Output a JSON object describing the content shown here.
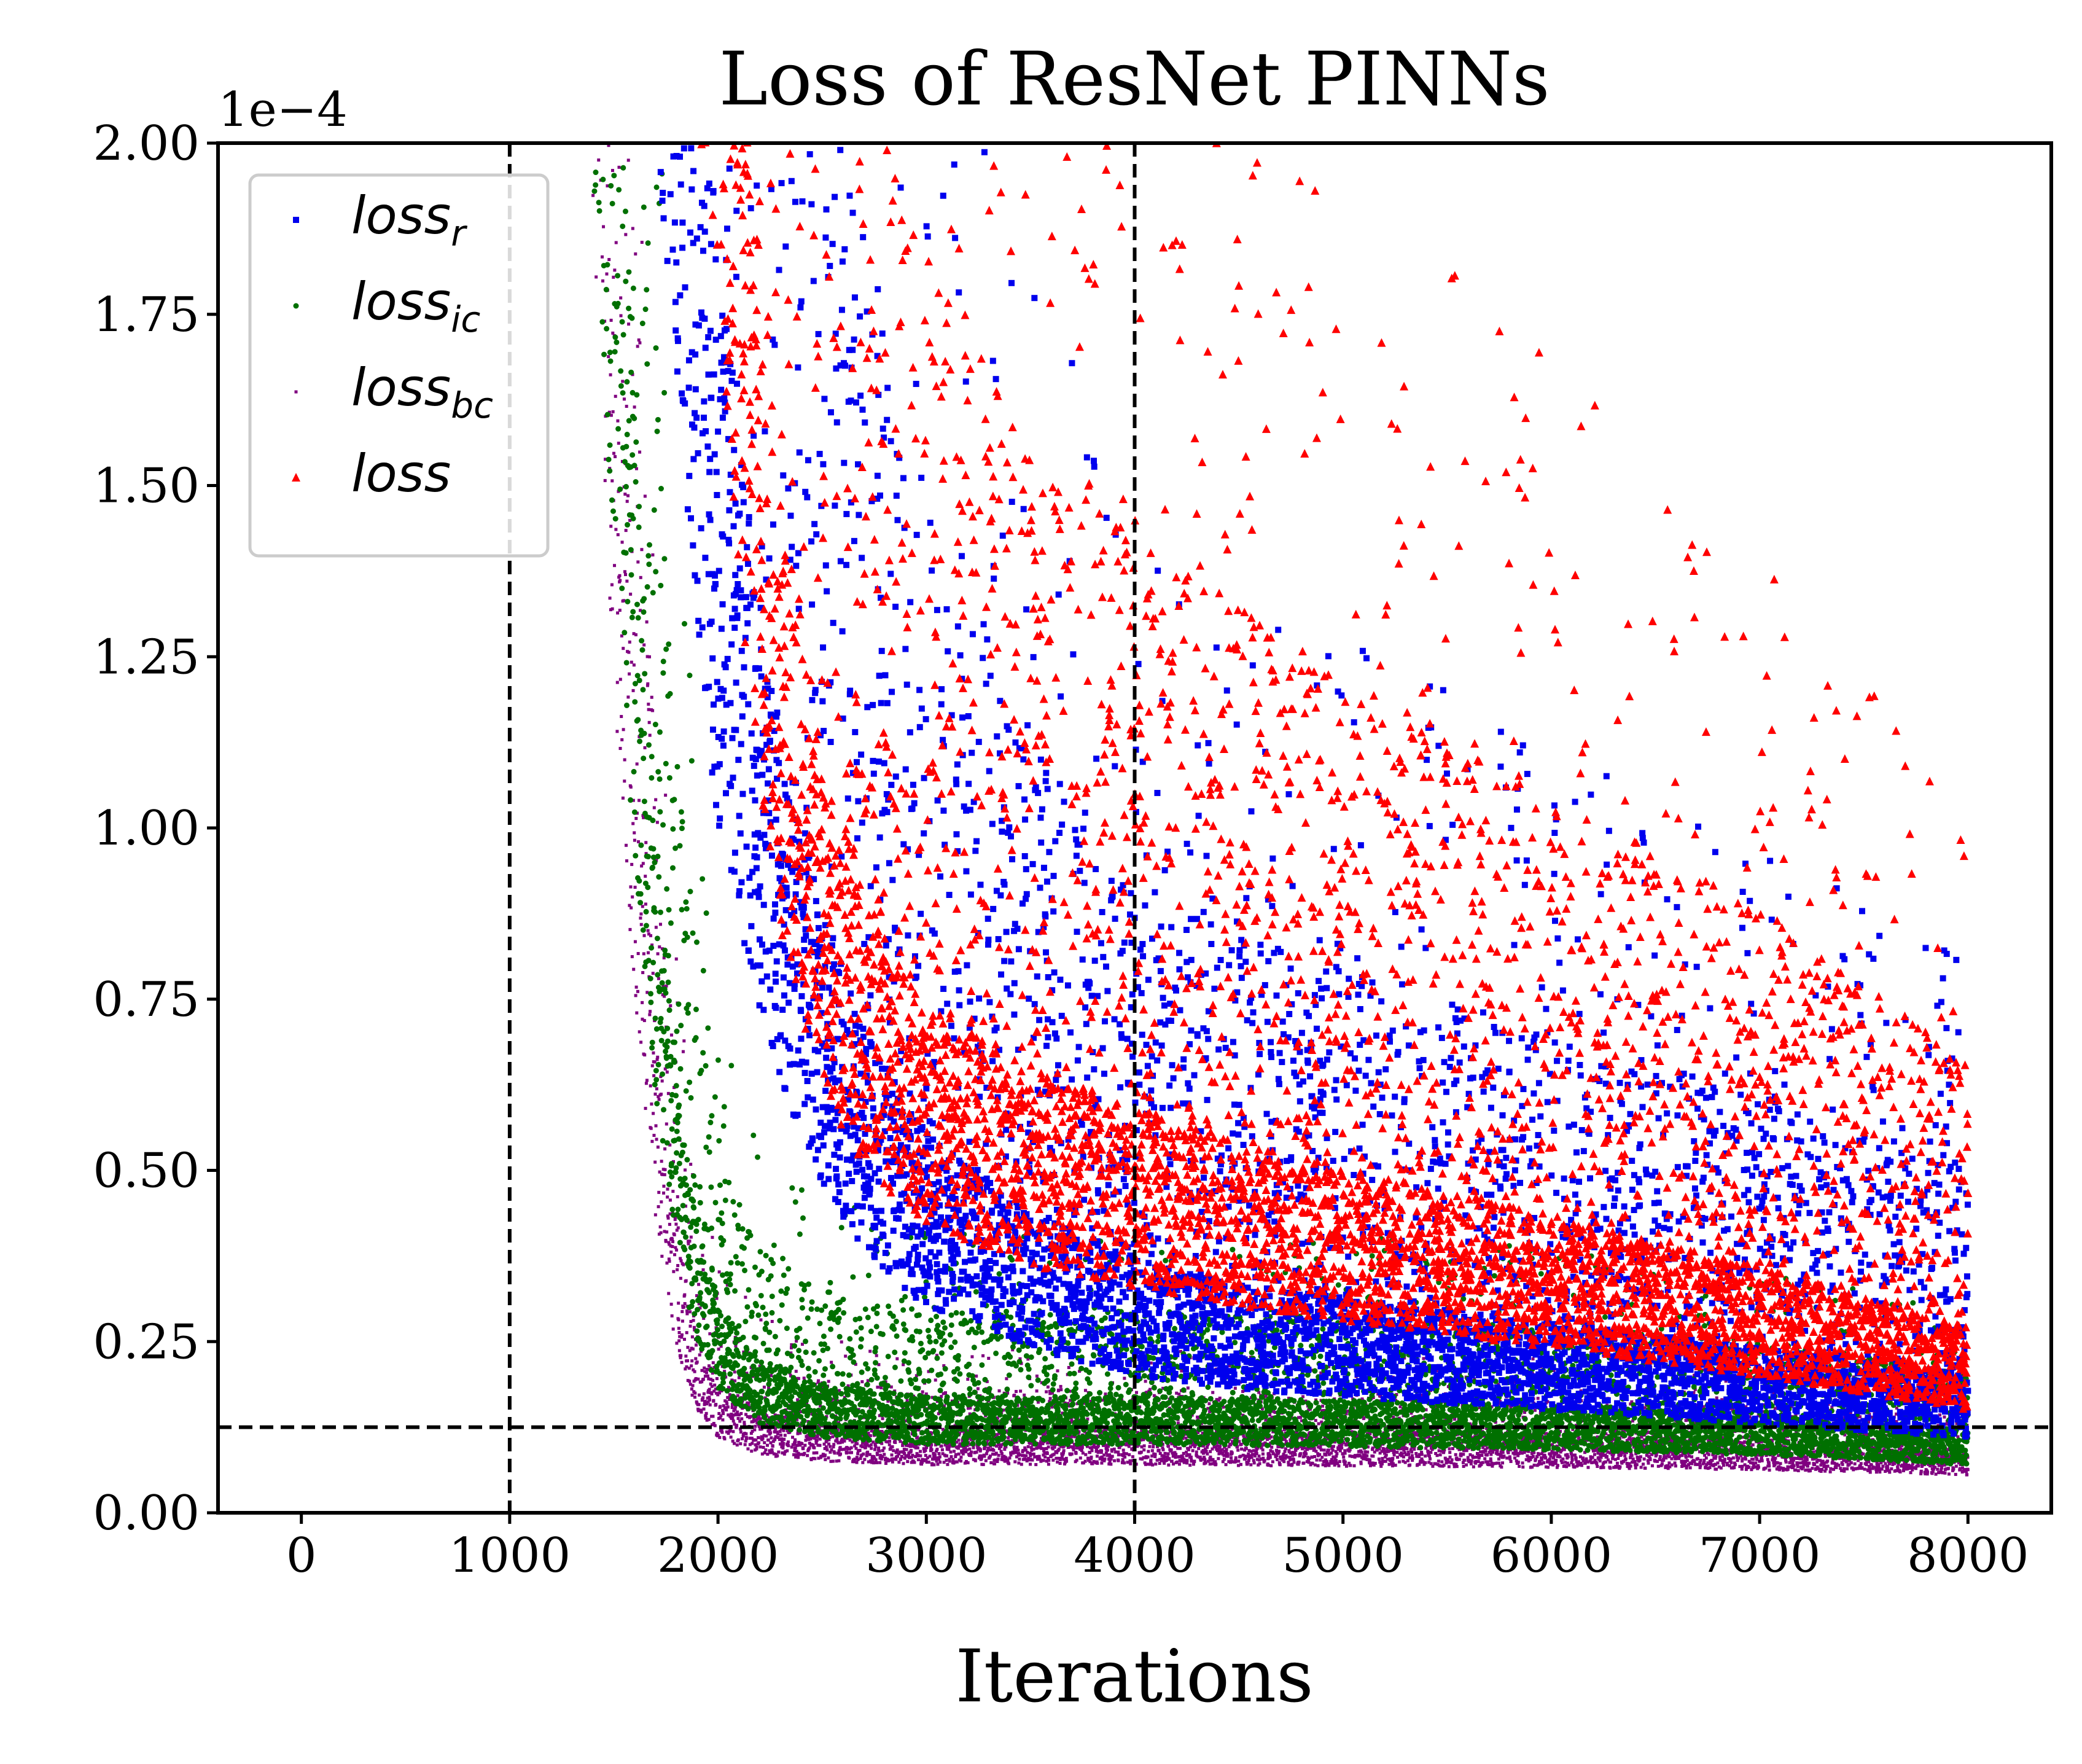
{
  "chart_data": {
    "type": "scatter",
    "title": "Loss of ResNet PINNs",
    "xlabel": "Iterations",
    "ylabel": "",
    "offset_label": "1e−4",
    "xlim": [
      -400,
      8400
    ],
    "ylim": [
      0,
      2.0
    ],
    "y_scale_factor": 0.0001,
    "xticks": [
      0,
      1000,
      2000,
      3000,
      4000,
      5000,
      6000,
      7000,
      8000
    ],
    "xtick_labels": [
      "0",
      "1000",
      "2000",
      "3000",
      "4000",
      "5000",
      "6000",
      "7000",
      "8000"
    ],
    "yticks": [
      0,
      0.25,
      0.5,
      0.75,
      1.0,
      1.25,
      1.5,
      1.75,
      2.0
    ],
    "ytick_labels": [
      "0.00",
      "0.25",
      "0.50",
      "0.75",
      "1.00",
      "1.25",
      "1.50",
      "1.75",
      "2.00"
    ],
    "legend_position": "top-left",
    "reference_lines": [
      {
        "orientation": "vertical",
        "value": 1000,
        "style": "dashed",
        "color": "#000000"
      },
      {
        "orientation": "vertical",
        "value": 4000,
        "style": "dashed",
        "color": "#000000"
      },
      {
        "orientation": "horizontal",
        "value": 0.125,
        "style": "dashed",
        "color": "#000000"
      }
    ],
    "series": [
      {
        "key": "loss_bc",
        "legend_base": "loss",
        "legend_sub": "bc",
        "color": "#800080",
        "marker": "pixel",
        "trend": [
          [
            1400,
            1.9
          ],
          [
            1500,
            1.2
          ],
          [
            1600,
            0.75
          ],
          [
            1700,
            0.42
          ],
          [
            1800,
            0.24
          ],
          [
            1900,
            0.15
          ],
          [
            2000,
            0.11
          ],
          [
            2200,
            0.085
          ],
          [
            2500,
            0.075
          ],
          [
            3000,
            0.07
          ],
          [
            4000,
            0.07
          ],
          [
            5000,
            0.068
          ],
          [
            6000,
            0.066
          ],
          [
            7000,
            0.062
          ],
          [
            8000,
            0.055
          ]
        ],
        "scatter_low": 0.75,
        "scatter_high": 2.4,
        "x_start": 1400,
        "x_end": 8000
      },
      {
        "key": "loss_ic",
        "legend_base": "loss",
        "legend_sub": "ic",
        "color": "#007000",
        "marker": "circle",
        "trend": [
          [
            1400,
            1.95
          ],
          [
            1500,
            1.4
          ],
          [
            1600,
            0.95
          ],
          [
            1700,
            0.6
          ],
          [
            1800,
            0.38
          ],
          [
            1900,
            0.25
          ],
          [
            2000,
            0.18
          ],
          [
            2200,
            0.13
          ],
          [
            2500,
            0.11
          ],
          [
            3000,
            0.1
          ],
          [
            4000,
            0.1
          ],
          [
            5000,
            0.097
          ],
          [
            6000,
            0.092
          ],
          [
            7000,
            0.085
          ],
          [
            8000,
            0.07
          ]
        ],
        "scatter_low": 0.7,
        "scatter_high": 3.2,
        "x_start": 1400,
        "x_end": 8000
      },
      {
        "key": "loss_r",
        "legend_base": "loss",
        "legend_sub": "r",
        "color": "#0000ee",
        "marker": "square",
        "trend": [
          [
            1700,
            2.0
          ],
          [
            1800,
            1.6
          ],
          [
            1900,
            1.25
          ],
          [
            2000,
            1.0
          ],
          [
            2100,
            0.85
          ],
          [
            2200,
            0.72
          ],
          [
            2300,
            0.62
          ],
          [
            2500,
            0.48
          ],
          [
            2700,
            0.38
          ],
          [
            3000,
            0.3
          ],
          [
            3500,
            0.24
          ],
          [
            4000,
            0.2
          ],
          [
            4500,
            0.18
          ],
          [
            5000,
            0.17
          ],
          [
            6000,
            0.15
          ],
          [
            7000,
            0.13
          ],
          [
            8000,
            0.11
          ]
        ],
        "scatter_low": 0.85,
        "scatter_high": 6.5,
        "x_start": 1700,
        "x_end": 8000
      },
      {
        "key": "loss",
        "legend_base": "loss",
        "legend_sub": "",
        "color": "#ff0000",
        "marker": "triangle",
        "trend": [
          [
            1900,
            2.0
          ],
          [
            2000,
            1.8
          ],
          [
            2100,
            1.35
          ],
          [
            2200,
            1.05
          ],
          [
            2300,
            0.82
          ],
          [
            2500,
            0.62
          ],
          [
            2700,
            0.5
          ],
          [
            3000,
            0.42
          ],
          [
            3500,
            0.36
          ],
          [
            4000,
            0.33
          ],
          [
            4500,
            0.3
          ],
          [
            5000,
            0.28
          ],
          [
            6000,
            0.24
          ],
          [
            7000,
            0.2
          ],
          [
            8000,
            0.15
          ]
        ],
        "scatter_low": 0.8,
        "scatter_high": 6.0,
        "x_start": 1900,
        "x_end": 8000
      }
    ],
    "legend_order": [
      "loss_r",
      "loss_ic",
      "loss_bc",
      "loss"
    ]
  }
}
